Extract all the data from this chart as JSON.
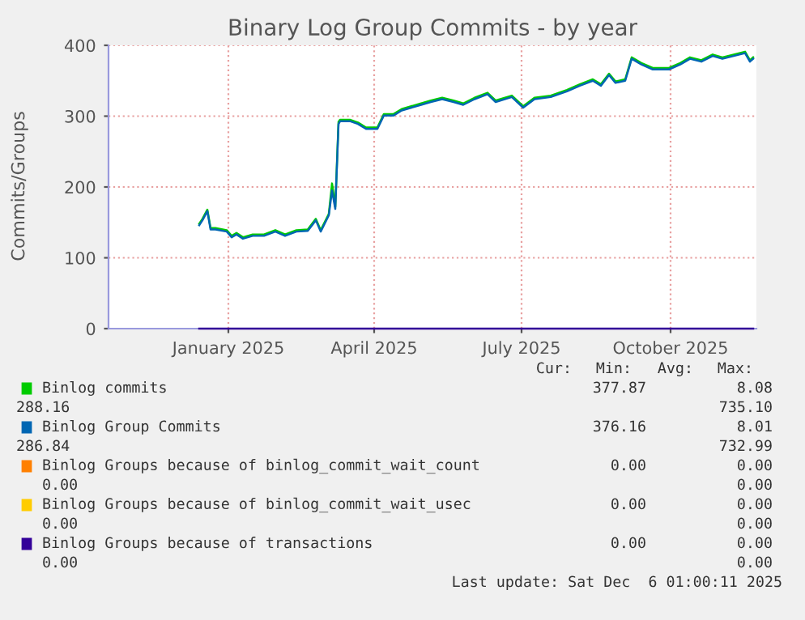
{
  "chart_data": {
    "type": "line",
    "title": "Binary Log Group Commits - by year",
    "ylabel": "Commits/Groups",
    "xlim": [
      "2024-11-02",
      "2025-12-07"
    ],
    "ylim": [
      0,
      400
    ],
    "yticks": [
      0,
      100,
      200,
      300,
      400
    ],
    "xticks": [
      {
        "value": "2025-01-15",
        "label": "January 2025"
      },
      {
        "value": "2025-04-15",
        "label": "April 2025"
      },
      {
        "value": "2025-07-15",
        "label": "July 2025"
      },
      {
        "value": "2025-10-15",
        "label": "October 2025"
      }
    ],
    "grid": true,
    "legend": "bottom",
    "marker": "none",
    "line_style": "solid",
    "x": [
      "2024-12-28",
      "2024-12-30",
      "2025-01-02",
      "2025-01-04",
      "2025-01-07",
      "2025-01-14",
      "2025-01-17",
      "2025-01-20",
      "2025-01-24",
      "2025-01-30",
      "2025-02-06",
      "2025-02-13",
      "2025-02-19",
      "2025-02-26",
      "2025-03-05",
      "2025-03-10",
      "2025-03-13",
      "2025-03-18",
      "2025-03-20",
      "2025-03-22",
      "2025-03-24",
      "2025-03-25",
      "2025-03-31",
      "2025-04-05",
      "2025-04-10",
      "2025-04-17",
      "2025-04-21",
      "2025-04-27",
      "2025-05-02",
      "2025-05-14",
      "2025-05-20",
      "2025-05-27",
      "2025-06-03",
      "2025-06-09",
      "2025-06-16",
      "2025-06-24",
      "2025-06-29",
      "2025-07-09",
      "2025-07-16",
      "2025-07-23",
      "2025-08-02",
      "2025-08-12",
      "2025-08-20",
      "2025-08-28",
      "2025-09-02",
      "2025-09-07",
      "2025-09-11",
      "2025-09-17",
      "2025-09-21",
      "2025-09-27",
      "2025-10-04",
      "2025-10-14",
      "2025-10-21",
      "2025-10-27",
      "2025-11-03",
      "2025-11-10",
      "2025-11-16",
      "2025-11-23",
      "2025-11-30",
      "2025-12-03",
      "2025-12-05"
    ],
    "series": [
      {
        "name": "Binlog commits",
        "color": "#00cc00",
        "values": [
          148,
          155,
          168,
          142,
          142,
          139,
          131,
          135,
          129,
          133,
          133,
          139,
          133,
          139,
          140,
          155,
          139,
          162,
          205,
          172,
          292,
          295,
          295,
          291,
          284,
          284,
          303,
          303,
          310,
          318,
          322,
          326,
          322,
          318,
          326,
          333,
          322,
          329,
          314,
          326,
          329,
          337,
          345,
          352,
          345,
          360,
          349,
          352,
          383,
          375,
          368,
          368,
          375,
          383,
          379,
          387,
          383,
          387,
          391,
          379,
          383
        ]
      },
      {
        "name": "Binlog Group Commits",
        "color": "#0066b3",
        "values": [
          146,
          153,
          166,
          140,
          140,
          137,
          129,
          133,
          127,
          131,
          131,
          137,
          131,
          137,
          138,
          153,
          137,
          160,
          195,
          169,
          289,
          293,
          293,
          289,
          282,
          282,
          301,
          301,
          308,
          316,
          320,
          324,
          320,
          316,
          324,
          331,
          320,
          327,
          312,
          324,
          327,
          335,
          343,
          350,
          343,
          358,
          347,
          350,
          381,
          373,
          366,
          366,
          373,
          381,
          377,
          385,
          381,
          385,
          389,
          377,
          381
        ]
      },
      {
        "name": "Binlog Groups because of binlog_commit_wait_count",
        "color": "#ff8000",
        "values": [
          null,
          null,
          null,
          null,
          null,
          null,
          null,
          null,
          null,
          null,
          null,
          null,
          null,
          null,
          null,
          null,
          null,
          null,
          null,
          null,
          null,
          null,
          null,
          null,
          null,
          null,
          null,
          null,
          null,
          null,
          null,
          null,
          null,
          null,
          null,
          null,
          null,
          null,
          null,
          null,
          null,
          null,
          null,
          null,
          null,
          null,
          null,
          null,
          null,
          null,
          null,
          null,
          null,
          null,
          null,
          null,
          null,
          null,
          null,
          null,
          null
        ]
      },
      {
        "name": "Binlog Groups because of binlog_commit_wait_usec",
        "color": "#ffcc00",
        "values": [
          null,
          null,
          null,
          null,
          null,
          null,
          null,
          null,
          null,
          null,
          null,
          null,
          null,
          null,
          null,
          null,
          null,
          null,
          null,
          null,
          null,
          null,
          null,
          null,
          null,
          null,
          null,
          null,
          null,
          null,
          null,
          null,
          null,
          null,
          null,
          null,
          null,
          null,
          null,
          null,
          null,
          null,
          null,
          null,
          null,
          null,
          null,
          null,
          null,
          null,
          null,
          null,
          null,
          null,
          null,
          null,
          null,
          null,
          null,
          null,
          null
        ]
      },
      {
        "name": "Binlog Groups because of transactions",
        "color": "#330099",
        "x": [
          "2024-12-28",
          "2025-12-05"
        ],
        "values": [
          0,
          0
        ]
      }
    ],
    "annotations": [
      "Cur:",
      "Min:",
      "Avg:",
      "Max:",
      "377.87",
      "8.08",
      "288.16",
      "735.10",
      "376.16",
      "8.01",
      "286.84",
      "732.99",
      "0.00",
      "0.00",
      "0.00",
      "0.00",
      "0.00",
      "0.00",
      "0.00",
      "0.00",
      "0.00",
      "0.00",
      "0.00",
      "0.00",
      "Last update: Sat Dec  6 01:00:11 2025"
    ]
  }
}
